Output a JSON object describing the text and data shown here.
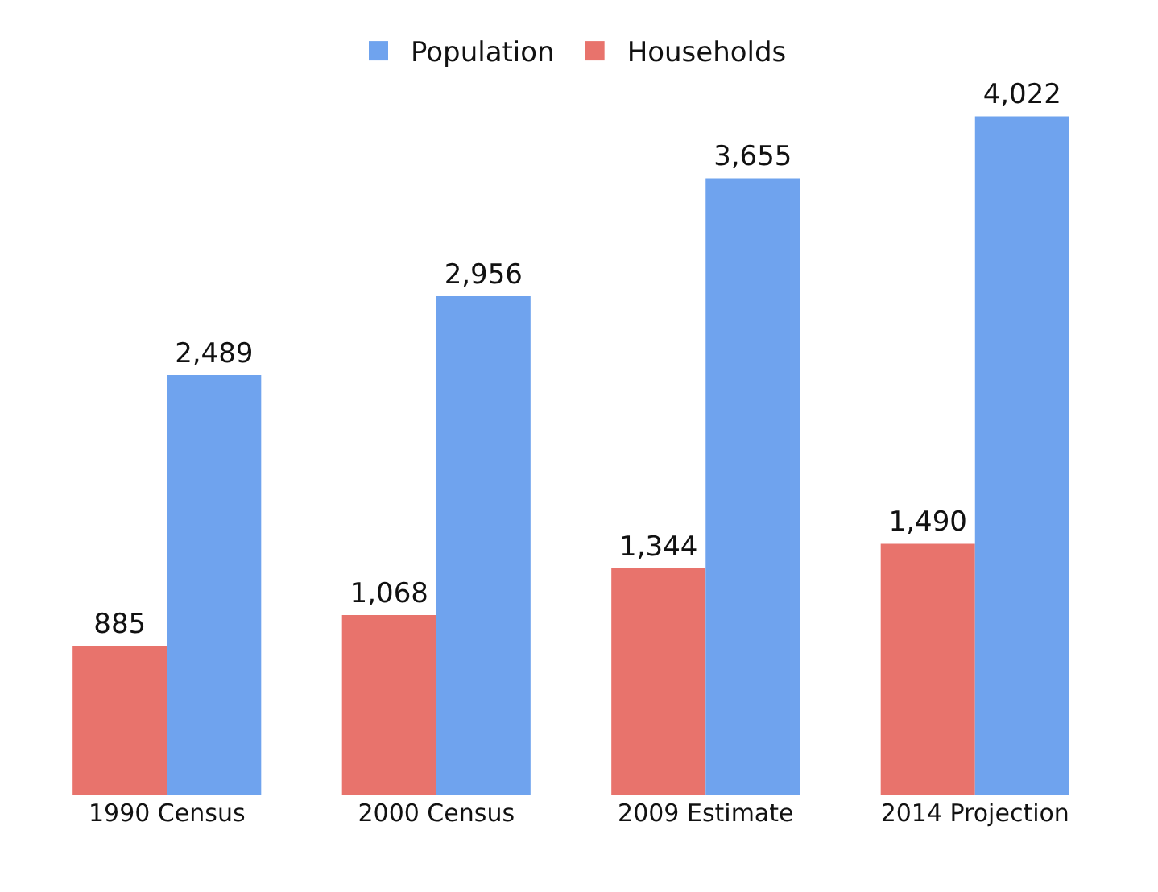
{
  "chart_data": {
    "type": "bar",
    "categories": [
      "1990 Census",
      "2000 Census",
      "2009 Estimate",
      "2014 Projection"
    ],
    "series": [
      {
        "name": "Households",
        "color": "#e8736c",
        "values": [
          885,
          1068,
          1344,
          1490
        ],
        "value_labels": [
          "885",
          "1,068",
          "1,344",
          "1,490"
        ]
      },
      {
        "name": "Population",
        "color": "#6fa3ee",
        "values": [
          2489,
          2956,
          3655,
          4022
        ],
        "value_labels": [
          "2,489",
          "2,956",
          "3,655",
          "4,022"
        ]
      }
    ],
    "legend": "top",
    "grid": false
  }
}
